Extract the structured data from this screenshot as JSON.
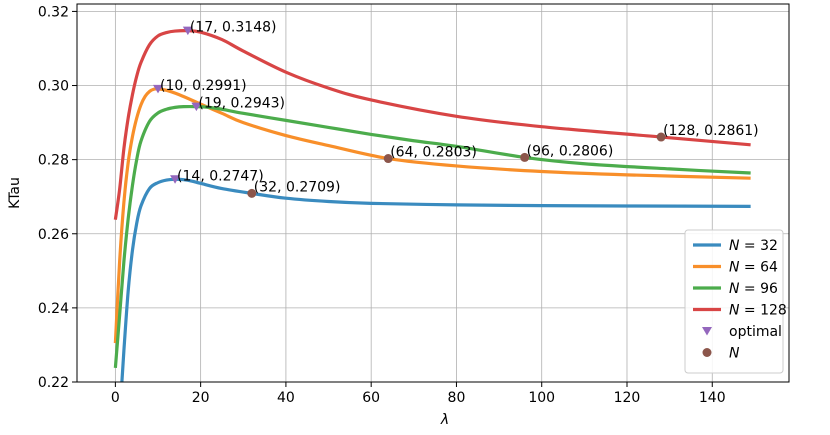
{
  "chart_data": {
    "type": "line",
    "xlabel": "λ",
    "ylabel": "KTau",
    "xlim": [
      -9,
      158
    ],
    "ylim": [
      0.22,
      0.322
    ],
    "xticks": [
      0,
      20,
      40,
      60,
      80,
      100,
      120,
      140
    ],
    "yticks": [
      0.22,
      0.24,
      0.26,
      0.28,
      0.3,
      0.32
    ],
    "ytick_labels": [
      "0.22",
      "0.24",
      "0.26",
      "0.28",
      "0.30",
      "0.32"
    ],
    "grid": true,
    "legend_position": "lower-right",
    "colors": {
      "N32": "#3a8bbf",
      "N64": "#f88f2a",
      "N96": "#4cac4c",
      "N128": "#d84545",
      "optimal": "#9467bd",
      "N": "#8c564b"
    },
    "series": [
      {
        "name": "N = 32",
        "legend_prefix": "N",
        "legend_suffix": " = 32",
        "color": "#3a8bbf",
        "x": [
          1.5,
          2,
          3,
          4,
          5,
          6,
          8,
          10,
          12,
          14,
          16,
          18,
          20,
          25,
          32,
          40,
          50,
          60,
          80,
          100,
          120,
          149
        ],
        "y": [
          0.2195,
          0.2285,
          0.2445,
          0.2555,
          0.2628,
          0.2675,
          0.2722,
          0.2738,
          0.2745,
          0.2747,
          0.2746,
          0.2742,
          0.2736,
          0.2722,
          0.2709,
          0.2696,
          0.2687,
          0.2682,
          0.2678,
          0.2676,
          0.2675,
          0.2674
        ]
      },
      {
        "name": "N = 64",
        "legend_prefix": "N",
        "legend_suffix": " = 64",
        "color": "#f88f2a",
        "x": [
          0,
          1,
          2,
          3,
          4,
          5,
          6,
          7,
          8,
          9,
          10,
          12,
          15,
          20,
          25,
          30,
          40,
          50,
          64,
          80,
          100,
          120,
          149
        ],
        "y": [
          0.2305,
          0.2525,
          0.2685,
          0.2792,
          0.2862,
          0.2912,
          0.2948,
          0.2971,
          0.2984,
          0.299,
          0.2991,
          0.2987,
          0.2975,
          0.295,
          0.2925,
          0.29,
          0.2865,
          0.2838,
          0.2803,
          0.2783,
          0.2768,
          0.2759,
          0.275
        ]
      },
      {
        "name": "N = 96",
        "legend_prefix": "N",
        "legend_suffix": " = 96",
        "color": "#4cac4c",
        "x": [
          0,
          1,
          2,
          3,
          4,
          5,
          6,
          8,
          10,
          12,
          14,
          16,
          19,
          22,
          25,
          30,
          40,
          50,
          60,
          70,
          80,
          96,
          110,
          130,
          149
        ],
        "y": [
          0.2238,
          0.238,
          0.2525,
          0.264,
          0.273,
          0.28,
          0.285,
          0.2903,
          0.2926,
          0.2936,
          0.2941,
          0.2943,
          0.2943,
          0.2941,
          0.2936,
          0.2925,
          0.2906,
          0.2887,
          0.2868,
          0.2851,
          0.2836,
          0.2806,
          0.2789,
          0.2775,
          0.2764
        ]
      },
      {
        "name": "N = 128",
        "legend_prefix": "N",
        "legend_suffix": " = 128",
        "color": "#d84545",
        "x": [
          0,
          1,
          2,
          3,
          4,
          5,
          6,
          8,
          10,
          12,
          14,
          17,
          20,
          25,
          30,
          40,
          50,
          60,
          80,
          100,
          128,
          149
        ],
        "y": [
          0.2638,
          0.272,
          0.283,
          0.2912,
          0.2975,
          0.3025,
          0.3062,
          0.311,
          0.3134,
          0.3143,
          0.3147,
          0.3148,
          0.3144,
          0.3124,
          0.3093,
          0.3036,
          0.2993,
          0.2961,
          0.2917,
          0.2889,
          0.2861,
          0.284
        ]
      }
    ],
    "optimal_points": [
      {
        "x": 14,
        "y": 0.2747,
        "label": "(14, 0.2747)"
      },
      {
        "x": 10,
        "y": 0.2991,
        "label": "(10, 0.2991)"
      },
      {
        "x": 19,
        "y": 0.2943,
        "label": "(19, 0.2943)"
      },
      {
        "x": 17,
        "y": 0.3148,
        "label": "(17, 0.3148)"
      }
    ],
    "n_points": [
      {
        "x": 32,
        "y": 0.2709,
        "label": "(32, 0.2709)"
      },
      {
        "x": 64,
        "y": 0.2803,
        "label": "(64, 0.2803)"
      },
      {
        "x": 96,
        "y": 0.2806,
        "label": "(96, 0.2806)"
      },
      {
        "x": 128,
        "y": 0.2861,
        "label": "(128, 0.2861)"
      }
    ],
    "legend": [
      {
        "kind": "line",
        "series": 0
      },
      {
        "kind": "line",
        "series": 1
      },
      {
        "kind": "line",
        "series": 2
      },
      {
        "kind": "line",
        "series": 3
      },
      {
        "kind": "marker-optimal",
        "text": "optimal"
      },
      {
        "kind": "marker-n",
        "text": "N"
      }
    ]
  }
}
